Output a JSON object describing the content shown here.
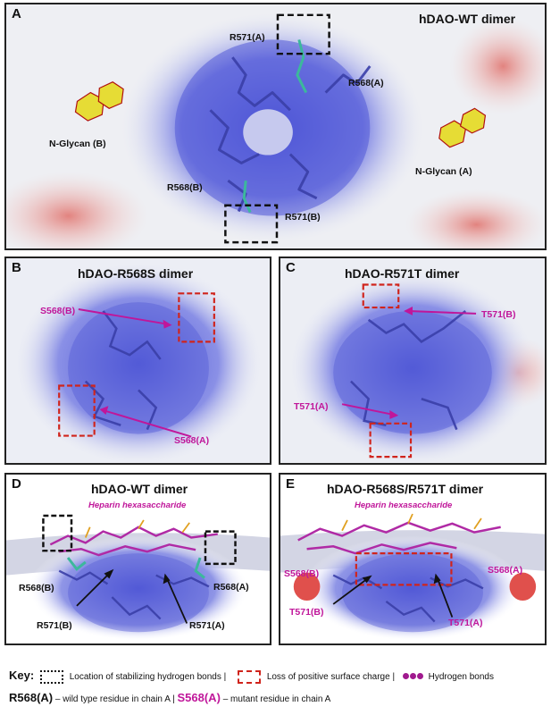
{
  "panels": {
    "A": {
      "letter": "A",
      "title": "hDAO-WT dimer",
      "labels": {
        "r571a": "R571(A)",
        "r568a": "R568(A)",
        "glycan_b": "N-Glycan (B)",
        "glycan_a": "N-Glycan (A)",
        "r568b": "R568(B)",
        "r571b": "R571(B)"
      }
    },
    "B": {
      "letter": "B",
      "title": "hDAO-R568S dimer",
      "labels": {
        "s568b": "S568(B)",
        "s568a": "S568(A)"
      }
    },
    "C": {
      "letter": "C",
      "title": "hDAO-R571T dimer",
      "labels": {
        "t571b": "T571(B)",
        "t571a": "T571(A)"
      }
    },
    "D": {
      "letter": "D",
      "title": "hDAO-WT dimer",
      "subtitle": "Heparin hexasaccharide",
      "labels": {
        "r568b": "R568(B)",
        "r568a": "R568(A)",
        "r571b": "R571(B)",
        "r571a": "R571(A)"
      }
    },
    "E": {
      "letter": "E",
      "title": "hDAO-R568S/R571T dimer",
      "subtitle": "Heparin hexasaccharide",
      "labels": {
        "s568b": "S568(B)",
        "s568a": "S568(A)",
        "t571b": "T571(B)",
        "t571a": "T571(A)"
      }
    }
  },
  "key": {
    "title": "Key:",
    "hbond_location": "Location of stabilizing hydrogen bonds |",
    "loss_charge": "Loss of positive surface charge |",
    "hbonds": "Hydrogen bonds",
    "wt_code": "R568(A)",
    "wt_desc": "– wild type residue in chain A |",
    "mut_code": "S568(A)",
    "mut_desc": "– mutant residue in chain A"
  },
  "colors": {
    "positive": "#5b63d8",
    "negative": "#e08a8a",
    "mutant": "#c0169a",
    "hbond_box": "#111111",
    "loss_box": "#d0241c",
    "glycan": "#e8e03a"
  }
}
